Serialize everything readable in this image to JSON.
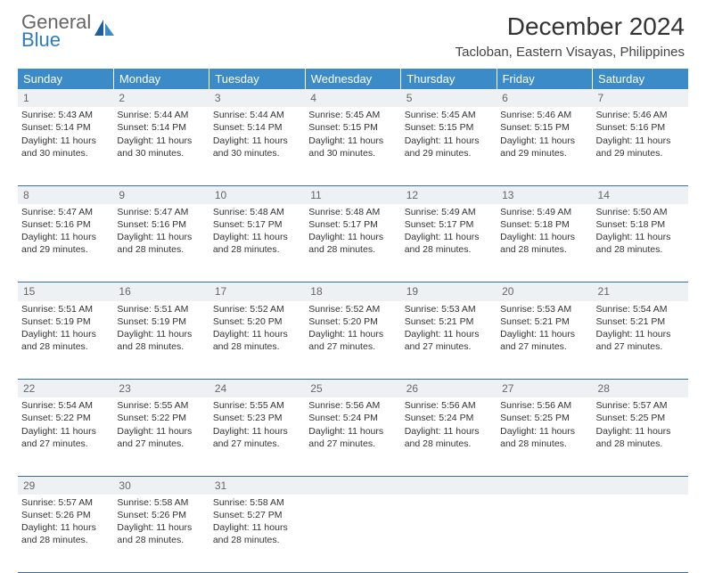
{
  "brand": {
    "line1": "General",
    "line2": "Blue"
  },
  "title": "December 2024",
  "location": "Tacloban, Eastern Visayas, Philippines",
  "header_bg": "#3b8bc8",
  "daynum_bg": "#eef1f3",
  "border_color": "#3b6d9a",
  "weekdays": [
    "Sunday",
    "Monday",
    "Tuesday",
    "Wednesday",
    "Thursday",
    "Friday",
    "Saturday"
  ],
  "weeks": [
    [
      {
        "n": "1",
        "sr": "5:43 AM",
        "ss": "5:14 PM",
        "dl": "11 hours and 30 minutes."
      },
      {
        "n": "2",
        "sr": "5:44 AM",
        "ss": "5:14 PM",
        "dl": "11 hours and 30 minutes."
      },
      {
        "n": "3",
        "sr": "5:44 AM",
        "ss": "5:14 PM",
        "dl": "11 hours and 30 minutes."
      },
      {
        "n": "4",
        "sr": "5:45 AM",
        "ss": "5:15 PM",
        "dl": "11 hours and 30 minutes."
      },
      {
        "n": "5",
        "sr": "5:45 AM",
        "ss": "5:15 PM",
        "dl": "11 hours and 29 minutes."
      },
      {
        "n": "6",
        "sr": "5:46 AM",
        "ss": "5:15 PM",
        "dl": "11 hours and 29 minutes."
      },
      {
        "n": "7",
        "sr": "5:46 AM",
        "ss": "5:16 PM",
        "dl": "11 hours and 29 minutes."
      }
    ],
    [
      {
        "n": "8",
        "sr": "5:47 AM",
        "ss": "5:16 PM",
        "dl": "11 hours and 29 minutes."
      },
      {
        "n": "9",
        "sr": "5:47 AM",
        "ss": "5:16 PM",
        "dl": "11 hours and 28 minutes."
      },
      {
        "n": "10",
        "sr": "5:48 AM",
        "ss": "5:17 PM",
        "dl": "11 hours and 28 minutes."
      },
      {
        "n": "11",
        "sr": "5:48 AM",
        "ss": "5:17 PM",
        "dl": "11 hours and 28 minutes."
      },
      {
        "n": "12",
        "sr": "5:49 AM",
        "ss": "5:17 PM",
        "dl": "11 hours and 28 minutes."
      },
      {
        "n": "13",
        "sr": "5:49 AM",
        "ss": "5:18 PM",
        "dl": "11 hours and 28 minutes."
      },
      {
        "n": "14",
        "sr": "5:50 AM",
        "ss": "5:18 PM",
        "dl": "11 hours and 28 minutes."
      }
    ],
    [
      {
        "n": "15",
        "sr": "5:51 AM",
        "ss": "5:19 PM",
        "dl": "11 hours and 28 minutes."
      },
      {
        "n": "16",
        "sr": "5:51 AM",
        "ss": "5:19 PM",
        "dl": "11 hours and 28 minutes."
      },
      {
        "n": "17",
        "sr": "5:52 AM",
        "ss": "5:20 PM",
        "dl": "11 hours and 28 minutes."
      },
      {
        "n": "18",
        "sr": "5:52 AM",
        "ss": "5:20 PM",
        "dl": "11 hours and 27 minutes."
      },
      {
        "n": "19",
        "sr": "5:53 AM",
        "ss": "5:21 PM",
        "dl": "11 hours and 27 minutes."
      },
      {
        "n": "20",
        "sr": "5:53 AM",
        "ss": "5:21 PM",
        "dl": "11 hours and 27 minutes."
      },
      {
        "n": "21",
        "sr": "5:54 AM",
        "ss": "5:21 PM",
        "dl": "11 hours and 27 minutes."
      }
    ],
    [
      {
        "n": "22",
        "sr": "5:54 AM",
        "ss": "5:22 PM",
        "dl": "11 hours and 27 minutes."
      },
      {
        "n": "23",
        "sr": "5:55 AM",
        "ss": "5:22 PM",
        "dl": "11 hours and 27 minutes."
      },
      {
        "n": "24",
        "sr": "5:55 AM",
        "ss": "5:23 PM",
        "dl": "11 hours and 27 minutes."
      },
      {
        "n": "25",
        "sr": "5:56 AM",
        "ss": "5:24 PM",
        "dl": "11 hours and 27 minutes."
      },
      {
        "n": "26",
        "sr": "5:56 AM",
        "ss": "5:24 PM",
        "dl": "11 hours and 28 minutes."
      },
      {
        "n": "27",
        "sr": "5:56 AM",
        "ss": "5:25 PM",
        "dl": "11 hours and 28 minutes."
      },
      {
        "n": "28",
        "sr": "5:57 AM",
        "ss": "5:25 PM",
        "dl": "11 hours and 28 minutes."
      }
    ],
    [
      {
        "n": "29",
        "sr": "5:57 AM",
        "ss": "5:26 PM",
        "dl": "11 hours and 28 minutes."
      },
      {
        "n": "30",
        "sr": "5:58 AM",
        "ss": "5:26 PM",
        "dl": "11 hours and 28 minutes."
      },
      {
        "n": "31",
        "sr": "5:58 AM",
        "ss": "5:27 PM",
        "dl": "11 hours and 28 minutes."
      },
      null,
      null,
      null,
      null
    ]
  ],
  "labels": {
    "sunrise": "Sunrise:",
    "sunset": "Sunset:",
    "daylight": "Daylight:"
  }
}
